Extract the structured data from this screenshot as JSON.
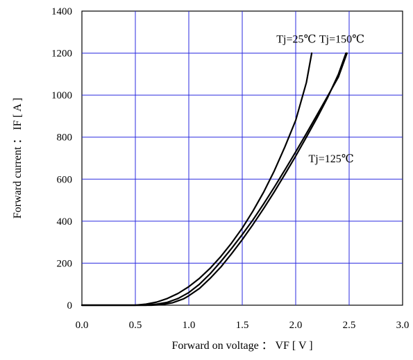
{
  "chart_data": {
    "type": "line",
    "title": "",
    "xlabel": "Forward on voltage ： VF [ V ]",
    "ylabel": "Forward current ： IF [ A ]",
    "xlim": [
      0,
      3
    ],
    "ylim": [
      0,
      1400
    ],
    "x_ticks": [
      0,
      0.5,
      1,
      1.5,
      2,
      2.5,
      3
    ],
    "x_tick_labels": [
      "0.0",
      "0.5",
      "1.0",
      "1.5",
      "2.0",
      "2.5",
      "3.0"
    ],
    "y_ticks": [
      0,
      200,
      400,
      600,
      800,
      1000,
      1200,
      1400
    ],
    "y_tick_labels": [
      "0",
      "200",
      "400",
      "600",
      "800",
      "1000",
      "1200",
      "1400"
    ],
    "grid": true,
    "series": [
      {
        "name": "Tj=25℃",
        "x": [
          0,
          0.5,
          0.6,
          0.7,
          0.8,
          0.9,
          1.0,
          1.1,
          1.2,
          1.3,
          1.4,
          1.5,
          1.6,
          1.7,
          1.8,
          1.9,
          2.0,
          2.1,
          2.15
        ],
        "y": [
          0,
          0,
          5,
          15,
          32,
          56,
          88,
          128,
          176,
          232,
          296,
          367,
          448,
          538,
          640,
          755,
          880,
          1060,
          1200
        ]
      },
      {
        "name": "Tj=125℃",
        "x": [
          0,
          0.6,
          0.7,
          0.8,
          0.9,
          1.0,
          1.1,
          1.2,
          1.3,
          1.4,
          1.5,
          1.6,
          1.7,
          1.8,
          1.9,
          2.0,
          2.1,
          2.2,
          2.3,
          2.4,
          2.48
        ],
        "y": [
          0,
          0,
          5,
          14,
          32,
          60,
          100,
          150,
          208,
          270,
          336,
          406,
          482,
          562,
          645,
          730,
          817,
          906,
          996,
          1087,
          1200
        ]
      },
      {
        "name": "Tj=150℃",
        "x": [
          0,
          0.65,
          0.75,
          0.85,
          0.95,
          1.0,
          1.1,
          1.2,
          1.3,
          1.4,
          1.5,
          1.6,
          1.7,
          1.8,
          1.9,
          2.0,
          2.1,
          2.2,
          2.3,
          2.4,
          2.47
        ],
        "y": [
          0,
          0,
          3,
          12,
          30,
          45,
          80,
          128,
          182,
          245,
          312,
          384,
          460,
          540,
          624,
          710,
          800,
          892,
          990,
          1100,
          1200
        ]
      }
    ],
    "annotations": [
      {
        "text": "Tj=25℃",
        "x": 1.82,
        "y": 1250
      },
      {
        "text": "Tj=150℃",
        "x": 2.22,
        "y": 1250
      },
      {
        "text": "Tj=125℃",
        "x": 2.12,
        "y": 680
      }
    ]
  }
}
